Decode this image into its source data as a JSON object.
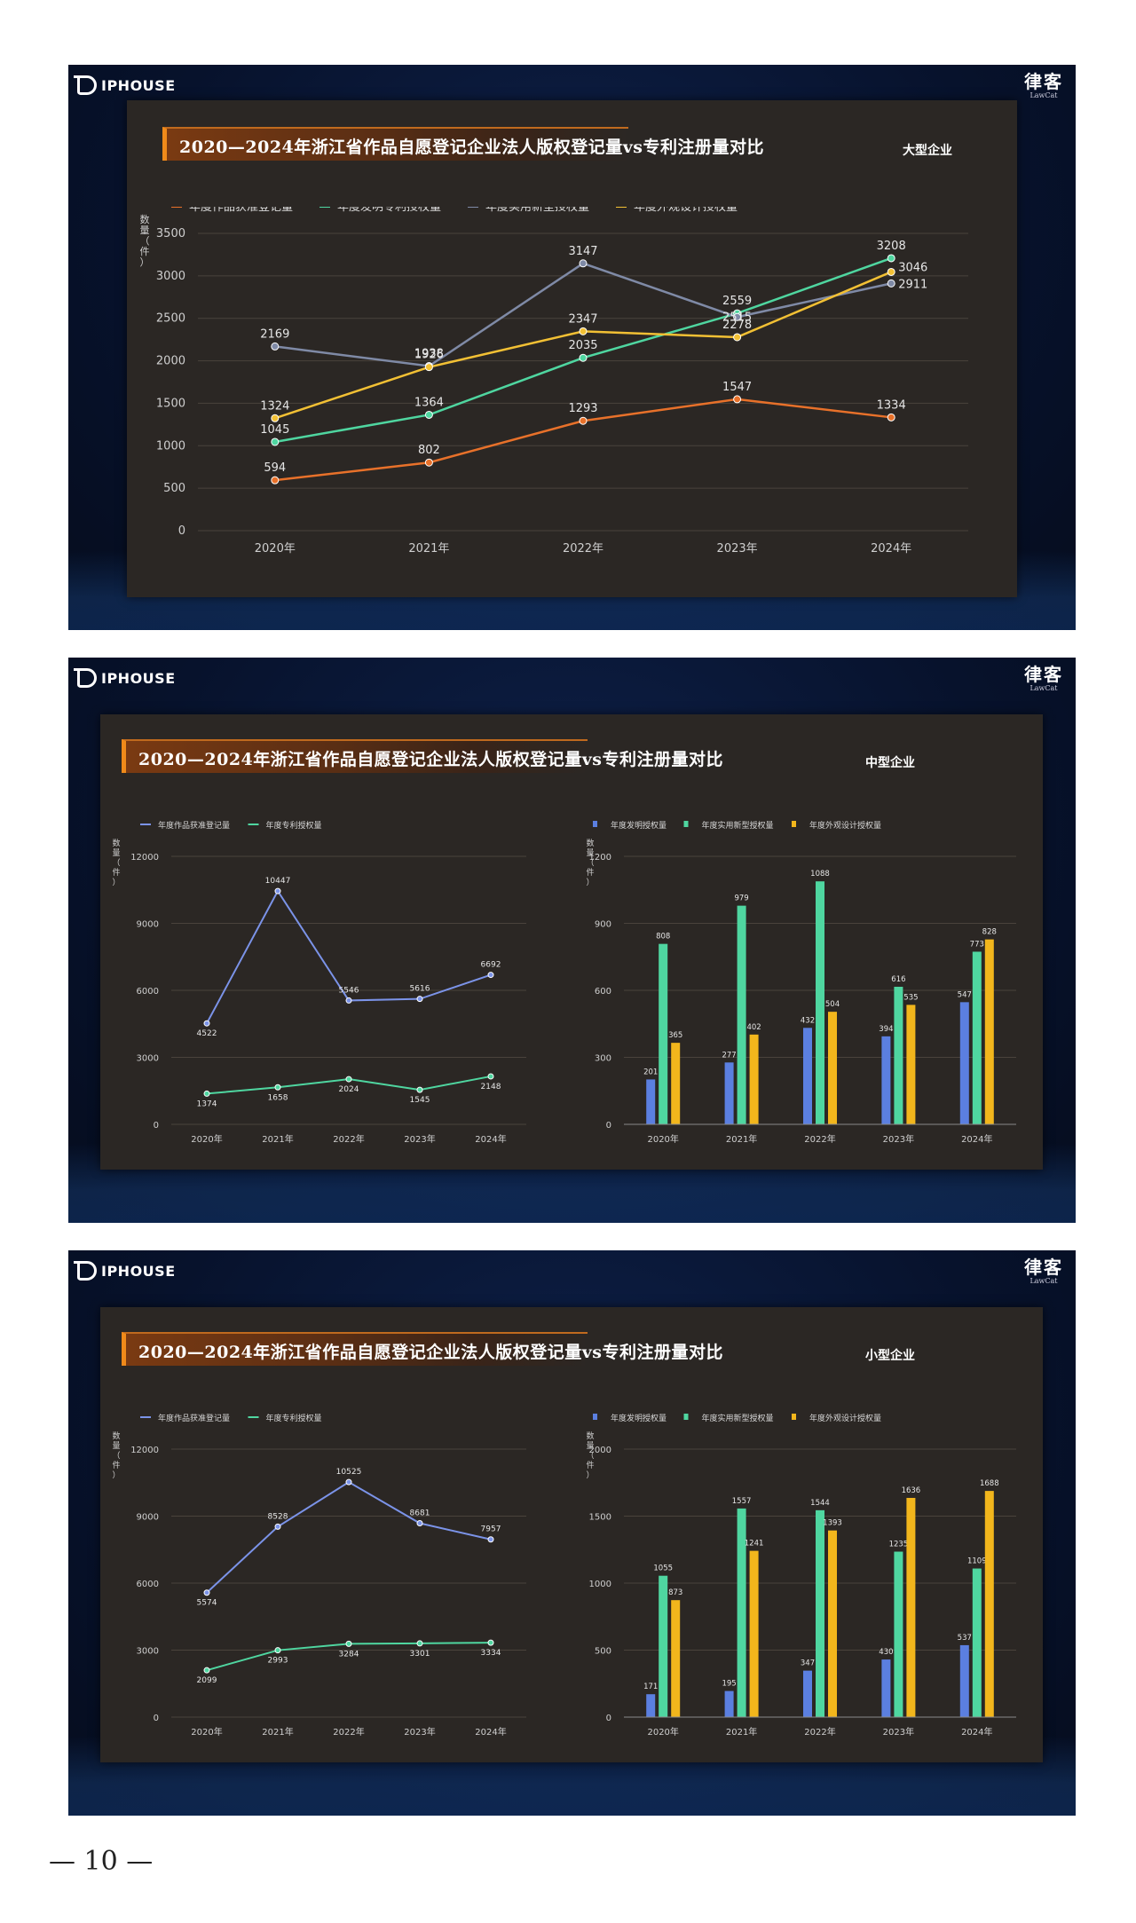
{
  "brand": {
    "logo_text": "IPHOUSE",
    "cn": "律客",
    "en": "LawCat"
  },
  "page_number": "— 10 —",
  "slides": [
    {
      "title": "2020—2024年浙江省作品自愿登记企业法人版权登记量vs专利注册量对比",
      "tag": "大型企业"
    },
    {
      "title": "2020—2024年浙江省作品自愿登记企业法人版权登记量vs专利注册量对比",
      "tag": "中型企业"
    },
    {
      "title": "2020—2024年浙江省作品自愿登记企业法人版权登记量vs专利注册量对比",
      "tag": "小型企业"
    }
  ],
  "chart_data": [
    {
      "id": "large-line",
      "type": "line",
      "categories": [
        "2020年",
        "2021年",
        "2022年",
        "2023年",
        "2024年"
      ],
      "ylabel": "数量（件）",
      "ylim": [
        0,
        3500
      ],
      "yticks": [
        0,
        500,
        1000,
        1500,
        2000,
        2500,
        3000,
        3500
      ],
      "legend": "top-left",
      "grid": true,
      "series": [
        {
          "name": "年度作品获准登记量",
          "color": "#e8712a",
          "values": [
            594,
            802,
            1293,
            1547,
            1334
          ]
        },
        {
          "name": "年度发明专利授权量",
          "color": "#4fd6a0",
          "values": [
            1045,
            1364,
            2035,
            2559,
            3208
          ]
        },
        {
          "name": "年度实用新型授权量",
          "color": "#7f8aa6",
          "values": [
            2169,
            1938,
            3147,
            2515,
            2911
          ]
        },
        {
          "name": "年度外观设计授权量",
          "color": "#f2c034",
          "values": [
            1324,
            1926,
            2347,
            2278,
            3046
          ]
        }
      ]
    },
    {
      "id": "medium-line",
      "type": "line",
      "categories": [
        "2020年",
        "2021年",
        "2022年",
        "2023年",
        "2024年"
      ],
      "ylabel": "数量（件）",
      "ylim": [
        0,
        12000
      ],
      "yticks": [
        0,
        3000,
        6000,
        9000,
        12000
      ],
      "legend": "top-left",
      "grid": true,
      "series": [
        {
          "name": "年度作品获准登记量",
          "color": "#7b93e8",
          "values": [
            4522,
            10447,
            5546,
            5616,
            6692
          ]
        },
        {
          "name": "年度专利授权量",
          "color": "#4fd6a0",
          "values": [
            1374,
            1658,
            2024,
            1545,
            2148
          ]
        }
      ]
    },
    {
      "id": "medium-bar",
      "type": "bar",
      "categories": [
        "2020年",
        "2021年",
        "2022年",
        "2023年",
        "2024年"
      ],
      "ylabel": "数量（件）",
      "ylim": [
        0,
        1200
      ],
      "yticks": [
        0,
        300,
        600,
        900,
        1200
      ],
      "legend": "top-left",
      "grid": true,
      "series": [
        {
          "name": "年度发明授权量",
          "color": "#5b7fe0",
          "values": [
            201,
            277,
            432,
            394,
            547
          ]
        },
        {
          "name": "年度实用新型授权量",
          "color": "#4fd6a0",
          "values": [
            808,
            979,
            1088,
            616,
            773
          ]
        },
        {
          "name": "年度外观设计授权量",
          "color": "#f2b61c",
          "values": [
            365,
            402,
            504,
            535,
            828
          ]
        }
      ]
    },
    {
      "id": "small-line",
      "type": "line",
      "categories": [
        "2020年",
        "2021年",
        "2022年",
        "2023年",
        "2024年"
      ],
      "ylabel": "数量（件）",
      "ylim": [
        0,
        12000
      ],
      "yticks": [
        0,
        3000,
        6000,
        9000,
        12000
      ],
      "legend": "top-left",
      "grid": true,
      "series": [
        {
          "name": "年度作品获准登记量",
          "color": "#7b93e8",
          "values": [
            5574,
            8528,
            10525,
            8681,
            7957
          ]
        },
        {
          "name": "年度专利授权量",
          "color": "#4fd6a0",
          "values": [
            2099,
            2993,
            3284,
            3301,
            3334
          ]
        }
      ]
    },
    {
      "id": "small-bar",
      "type": "bar",
      "categories": [
        "2020年",
        "2021年",
        "2022年",
        "2023年",
        "2024年"
      ],
      "ylabel": "数量（件）",
      "ylim": [
        0,
        2000
      ],
      "yticks": [
        0,
        500,
        1000,
        1500,
        2000
      ],
      "legend": "top-left",
      "grid": true,
      "series": [
        {
          "name": "年度发明授权量",
          "color": "#5b7fe0",
          "values": [
            171,
            195,
            347,
            430,
            537
          ]
        },
        {
          "name": "年度实用新型授权量",
          "color": "#4fd6a0",
          "values": [
            1055,
            1557,
            1544,
            1235,
            1109
          ]
        },
        {
          "name": "年度外观设计授权量",
          "color": "#f2b61c",
          "values": [
            873,
            1241,
            1393,
            1636,
            1688
          ]
        }
      ]
    }
  ]
}
